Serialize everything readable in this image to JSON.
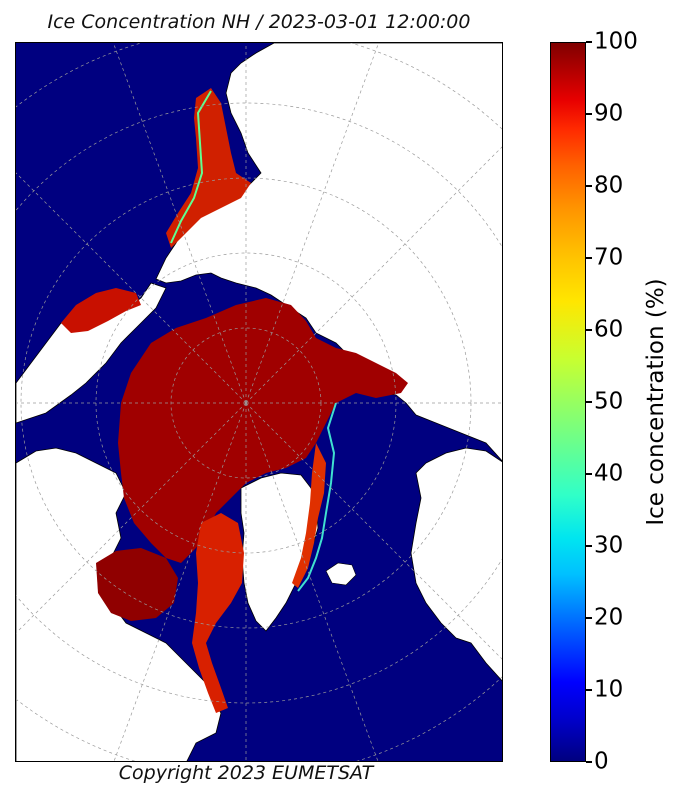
{
  "title": "Ice Concentration NH / 2023-03-01 12:00:00",
  "copyright": "Copyright 2023 EUMETSAT",
  "colorbar": {
    "label": "Ice concentration (%)",
    "ticks": [
      "100",
      "90",
      "80",
      "70",
      "60",
      "50",
      "40",
      "30",
      "20",
      "10",
      "0"
    ],
    "range": [
      0,
      100
    ],
    "colormap": "jet"
  },
  "map": {
    "projection": "polar-stereographic",
    "hemisphere": "north",
    "ocean_color": "#000080",
    "land_color": "#ffffff",
    "ice_color_max": "#800000",
    "graticule": "dashed-gray"
  }
}
